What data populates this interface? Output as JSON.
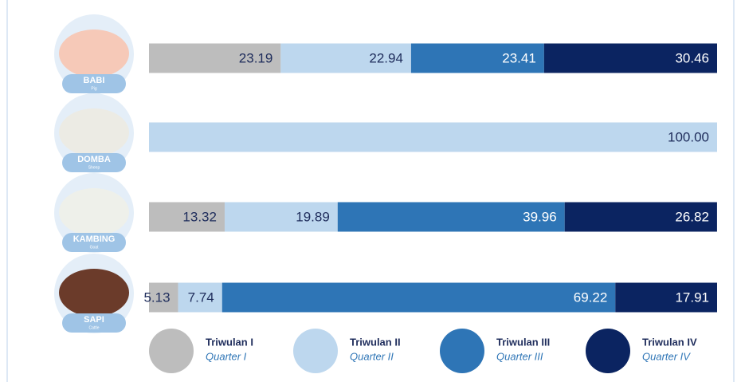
{
  "chart_data": {
    "type": "stacked-bar-horizontal",
    "categories": [
      "BABI",
      "DOMBA",
      "KAMBING",
      "SAPI"
    ],
    "category_subtitles": [
      "Pig",
      "Sheep",
      "Goat",
      "Cattle"
    ],
    "xlim": [
      0,
      100
    ],
    "series": [
      {
        "name": "Triwulan I",
        "subname": "Quarter I",
        "color": "#bdbdbd",
        "values": [
          23.19,
          null,
          13.32,
          5.13
        ]
      },
      {
        "name": "Triwulan II",
        "subname": "Quarter II",
        "color": "#bdd7ee",
        "values": [
          22.94,
          100.0,
          19.89,
          7.74
        ],
        "value_labels": [
          "22.94",
          "100.00",
          "19.89",
          "7.74"
        ]
      },
      {
        "name": "Triwulan III",
        "subname": "Quarter III",
        "color": "#2e75b6",
        "values": [
          23.41,
          null,
          39.96,
          69.22
        ]
      },
      {
        "name": "Triwulan IV",
        "subname": "Quarter IV",
        "color": "#0b2461",
        "values": [
          30.46,
          null,
          26.82,
          17.91
        ]
      }
    ]
  }
}
